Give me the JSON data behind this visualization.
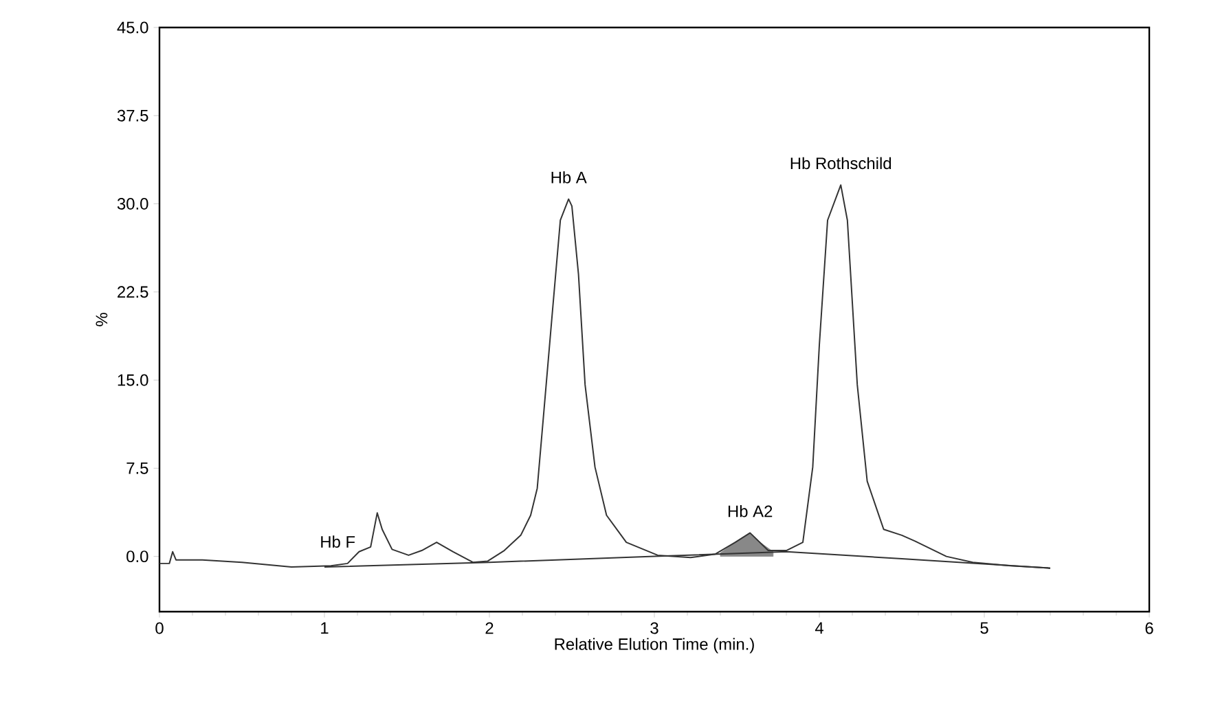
{
  "chart_data": {
    "type": "line",
    "xlabel": "Relative Elution Time (min.)",
    "ylabel": "%",
    "xlim": [
      0,
      6
    ],
    "ylim": [
      -4.7,
      45
    ],
    "xticks": [
      0,
      1,
      2,
      3,
      4,
      5,
      6
    ],
    "yticks": [
      {
        "value": 0,
        "label": "0.0"
      },
      {
        "value": 7.5,
        "label": "7.5"
      },
      {
        "value": 15,
        "label": "15.0"
      },
      {
        "value": 22.5,
        "label": "22.5"
      },
      {
        "value": 30,
        "label": "30.0"
      },
      {
        "value": 37.5,
        "label": "37.5"
      },
      {
        "value": 45,
        "label": "45.0"
      }
    ],
    "marker": "none",
    "series": [
      {
        "type": "area",
        "color": "#888888",
        "x": [
          3.4,
          3.49,
          3.58,
          3.65,
          3.72
        ],
        "values": [
          0.3,
          1.2,
          2.0,
          1.1,
          0.4
        ]
      },
      {
        "color": "#333333",
        "x": [
          0,
          0.06,
          0.08,
          0.1,
          0.26,
          0.5,
          0.8,
          1.04,
          1.14,
          1.21,
          1.28,
          1.32,
          1.35,
          1.41,
          1.51,
          1.59,
          1.68,
          1.78,
          1.9,
          1.99,
          2.09,
          2.19,
          2.25,
          2.29,
          2.33,
          2.38,
          2.43,
          2.48,
          2.5,
          2.54,
          2.58,
          2.64,
          2.71,
          2.83,
          3.02,
          3.22,
          3.37,
          3.49,
          3.58,
          3.69,
          3.8,
          3.9,
          3.96,
          4.0,
          4.05,
          4.13,
          4.17,
          4.23,
          4.29,
          4.39,
          4.5,
          4.58,
          4.77,
          4.93,
          5.16,
          5.4
        ],
        "values": [
          -0.6,
          -0.6,
          0.4,
          -0.3,
          -0.3,
          -0.5,
          -0.9,
          -0.8,
          -0.6,
          0.4,
          0.8,
          3.7,
          2.3,
          0.6,
          0.1,
          0.5,
          1.2,
          0.4,
          -0.5,
          -0.4,
          0.5,
          1.8,
          3.5,
          5.8,
          12.3,
          20.5,
          28.6,
          30.4,
          29.8,
          24,
          14.6,
          7.6,
          3.5,
          1.2,
          0.1,
          -0.1,
          0.2,
          1.2,
          2.0,
          0.5,
          0.5,
          1.2,
          7.6,
          18,
          28.6,
          31.6,
          28.6,
          14.6,
          6.4,
          2.3,
          1.8,
          1.3,
          0,
          -0.5,
          -0.8,
          -1.0
        ]
      },
      {
        "color": "#333333",
        "x": [
          1.0,
          2.0,
          3.0,
          3.8,
          4.5,
          5.4
        ],
        "values": [
          -0.9,
          -0.5,
          0.0,
          0.4,
          -0.2,
          -1.0
        ]
      }
    ],
    "annotations": [
      {
        "text": "Hb F",
        "x": 1.08,
        "y": -0.6
      },
      {
        "text": "Hb A",
        "x": 2.48,
        "y": 30.4
      },
      {
        "text": "Hb A2",
        "x": 3.58,
        "y": 2.0
      },
      {
        "text": "Hb Rothschild",
        "x": 4.13,
        "y": 31.6
      }
    ]
  }
}
